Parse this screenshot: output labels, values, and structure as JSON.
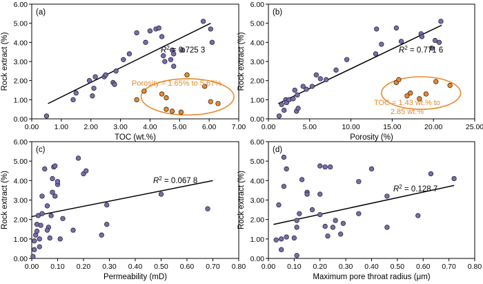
{
  "colors": {
    "purple": "#7a6bb0",
    "orange": "#e8892b",
    "line": "#000000"
  },
  "chart_data": [
    {
      "type": "scatter",
      "panel_label": "(a)",
      "xlabel": "TOC (wt.%)",
      "ylabel": "Rock extract (%)",
      "xlim": [
        0,
        7
      ],
      "ylim": [
        0,
        6
      ],
      "xticks": [
        "0.00",
        "1.00",
        "2.00",
        "3.00",
        "4.00",
        "5.00",
        "6.00",
        "7.00"
      ],
      "yticks": [
        "0.00",
        "1.00",
        "2.00",
        "3.00",
        "4.00",
        "5.00",
        "6.00"
      ],
      "r2_label": "R",
      "r2_sup": "2",
      "r2_value": " = 0.725 3",
      "annotation": [
        "Porosity = 1.65% to 5.67%"
      ],
      "fit": {
        "x": [
          0.55,
          6.05
        ],
        "y": [
          0.8,
          5.0
        ]
      },
      "ellipse": {
        "cx": 5.27,
        "cy": 1.15,
        "rx": 1.57,
        "ry": 0.95
      },
      "series": [
        {
          "color": "purple",
          "points": [
            [
              0.5,
              0.15
            ],
            [
              1.4,
              1.0
            ],
            [
              1.5,
              1.35
            ],
            [
              1.95,
              2.0
            ],
            [
              2.05,
              1.2
            ],
            [
              2.1,
              1.6
            ],
            [
              2.15,
              2.2
            ],
            [
              2.45,
              2.2
            ],
            [
              2.5,
              2.3
            ],
            [
              2.75,
              1.9
            ],
            [
              2.8,
              1.8
            ],
            [
              2.85,
              2.5
            ],
            [
              3.1,
              3.1
            ],
            [
              3.3,
              3.4
            ],
            [
              3.55,
              4.5
            ],
            [
              3.85,
              4.0
            ],
            [
              4.0,
              4.6
            ],
            [
              4.2,
              4.7
            ],
            [
              4.3,
              4.75
            ],
            [
              4.4,
              4.3
            ],
            [
              4.45,
              3.3
            ],
            [
              4.5,
              3.0
            ],
            [
              4.7,
              3.1
            ],
            [
              4.75,
              3.6
            ],
            [
              4.8,
              3.4
            ],
            [
              4.8,
              2.75
            ],
            [
              5.1,
              3.6
            ],
            [
              5.8,
              5.1
            ],
            [
              6.05,
              4.7
            ],
            [
              6.1,
              4.0
            ]
          ]
        },
        {
          "color": "orange",
          "points": [
            [
              3.55,
              1.0
            ],
            [
              3.8,
              1.45
            ],
            [
              4.4,
              1.3
            ],
            [
              4.55,
              1.1
            ],
            [
              4.55,
              0.5
            ],
            [
              4.75,
              0.4
            ],
            [
              5.05,
              0.35
            ],
            [
              5.25,
              2.3
            ],
            [
              5.85,
              1.7
            ],
            [
              6.05,
              0.9
            ],
            [
              6.3,
              0.8
            ]
          ]
        }
      ]
    },
    {
      "type": "scatter",
      "panel_label": "(b)",
      "xlabel": "Porosity (%)",
      "ylabel": "Rock extract (%)",
      "xlim": [
        0,
        25
      ],
      "ylim": [
        0,
        6
      ],
      "xticks": [
        "0.00",
        "5.00",
        "10.00",
        "15.00",
        "20.00",
        "25.00"
      ],
      "yticks": [
        "0.00",
        "1.00",
        "2.00",
        "3.00",
        "4.00",
        "5.00",
        "6.00"
      ],
      "r2_label": "R",
      "r2_sup": "2",
      "r2_value": " = 0.771 6",
      "annotation": [
        "TOC = 1.43 wt.% to",
        "2.85 wt.%"
      ],
      "fit": {
        "x": [
          1.2,
          21.0
        ],
        "y": [
          0.8,
          4.9
        ]
      },
      "ellipse": {
        "cx": 18.5,
        "cy": 1.35,
        "rx": 4.8,
        "ry": 0.85
      },
      "series": [
        {
          "color": "purple",
          "points": [
            [
              1.3,
              0.15
            ],
            [
              1.6,
              0.75
            ],
            [
              1.9,
              0.45
            ],
            [
              2.1,
              1.0
            ],
            [
              2.2,
              0.85
            ],
            [
              2.5,
              1.0
            ],
            [
              3.0,
              1.05
            ],
            [
              3.2,
              1.5
            ],
            [
              3.4,
              0.4
            ],
            [
              3.5,
              1.25
            ],
            [
              3.6,
              0.55
            ],
            [
              4.2,
              1.7
            ],
            [
              4.6,
              1.55
            ],
            [
              5.3,
              1.7
            ],
            [
              5.8,
              2.3
            ],
            [
              6.3,
              2.1
            ],
            [
              7.0,
              2.05
            ],
            [
              8.2,
              2.55
            ],
            [
              9.5,
              3.1
            ],
            [
              13.0,
              3.4
            ],
            [
              13.1,
              4.7
            ],
            [
              13.7,
              3.9
            ],
            [
              15.5,
              4.75
            ],
            [
              16.1,
              4.05
            ],
            [
              18.5,
              4.45
            ],
            [
              18.6,
              4.3
            ],
            [
              19.8,
              3.7
            ],
            [
              20.2,
              4.1
            ],
            [
              20.7,
              4.0
            ],
            [
              20.9,
              5.1
            ]
          ]
        },
        {
          "color": "orange",
          "points": [
            [
              15.5,
              1.9
            ],
            [
              16.8,
              1.2
            ],
            [
              18.3,
              1.05
            ],
            [
              19.1,
              1.3
            ],
            [
              20.3,
              1.95
            ],
            [
              22.0,
              1.75
            ],
            [
              15.8,
              2.05
            ],
            [
              17.2,
              1.35
            ]
          ]
        }
      ]
    },
    {
      "type": "scatter",
      "panel_label": "(c)",
      "xlabel": "Permeability (mD)",
      "ylabel": "Rock extract (%)",
      "xlim": [
        0,
        0.8
      ],
      "ylim": [
        0,
        6
      ],
      "xticks": [
        "0.00",
        "0.10",
        "0.20",
        "0.30",
        "0.40",
        "0.50",
        "0.60",
        "0.70",
        "0.80"
      ],
      "yticks": [
        "0.00",
        "1.00",
        "2.00",
        "3.00",
        "4.00",
        "5.00",
        "6.00"
      ],
      "r2_label": "R",
      "r2_sup": "2",
      "r2_value": " = 0.067 8",
      "annotation": [],
      "fit": {
        "x": [
          0.0,
          0.7
        ],
        "y": [
          2.15,
          4.0
        ]
      },
      "series": [
        {
          "color": "purple",
          "points": [
            [
              0.005,
              0.1
            ],
            [
              0.01,
              0.45
            ],
            [
              0.01,
              0.9
            ],
            [
              0.015,
              1.2
            ],
            [
              0.02,
              1.4
            ],
            [
              0.02,
              1.75
            ],
            [
              0.025,
              2.2
            ],
            [
              0.03,
              1.0
            ],
            [
              0.035,
              1.7
            ],
            [
              0.04,
              2.3
            ],
            [
              0.04,
              3.2
            ],
            [
              0.05,
              4.6
            ],
            [
              0.06,
              2.7
            ],
            [
              0.065,
              1.6
            ],
            [
              0.07,
              1.05
            ],
            [
              0.075,
              2.2
            ],
            [
              0.08,
              4.1
            ],
            [
              0.08,
              3.4
            ],
            [
              0.085,
              4.7
            ],
            [
              0.09,
              3.2
            ],
            [
              0.09,
              4.75
            ],
            [
              0.1,
              3.8
            ],
            [
              0.1,
              3.95
            ],
            [
              0.11,
              1.0
            ],
            [
              0.12,
              2.05
            ],
            [
              0.16,
              1.45
            ],
            [
              0.18,
              5.15
            ],
            [
              0.2,
              4.35
            ],
            [
              0.21,
              4.5
            ],
            [
              0.27,
              1.2
            ],
            [
              0.29,
              2.75
            ],
            [
              0.29,
              1.75
            ],
            [
              0.5,
              3.3
            ],
            [
              0.68,
              2.55
            ],
            [
              0.06,
              1.45
            ],
            [
              0.03,
              0.6
            ]
          ]
        }
      ]
    },
    {
      "type": "scatter",
      "panel_label": "(d)",
      "xlabel": "Maximum pore throat radius (μm)",
      "ylabel": "Rock extract (%)",
      "xlim": [
        0,
        0.8
      ],
      "ylim": [
        0,
        6
      ],
      "xticks": [
        "0.00",
        "0.10",
        "0.20",
        "0.30",
        "0.40",
        "0.50",
        "0.60",
        "0.70",
        "0.80"
      ],
      "yticks": [
        "0.00",
        "1.00",
        "2.00",
        "3.00",
        "4.00",
        "5.00",
        "6.00"
      ],
      "r2_label": "R",
      "r2_sup": "2",
      "r2_value": " = 0.128 7",
      "annotation": [],
      "fit": {
        "x": [
          0.02,
          0.72
        ],
        "y": [
          1.75,
          3.75
        ]
      },
      "series": [
        {
          "color": "purple",
          "points": [
            [
              0.03,
              0.95
            ],
            [
              0.04,
              2.75
            ],
            [
              0.05,
              0.45
            ],
            [
              0.05,
              1.0
            ],
            [
              0.06,
              5.2
            ],
            [
              0.06,
              3.7
            ],
            [
              0.07,
              1.1
            ],
            [
              0.07,
              4.6
            ],
            [
              0.1,
              1.05
            ],
            [
              0.11,
              1.6
            ],
            [
              0.11,
              0.15
            ],
            [
              0.11,
              1.95
            ],
            [
              0.12,
              2.3
            ],
            [
              0.13,
              4.05
            ],
            [
              0.15,
              3.4
            ],
            [
              0.15,
              3.3
            ],
            [
              0.17,
              2.5
            ],
            [
              0.2,
              4.75
            ],
            [
              0.2,
              3.3
            ],
            [
              0.2,
              2.25
            ],
            [
              0.22,
              1.65
            ],
            [
              0.22,
              4.7
            ],
            [
              0.23,
              1.15
            ],
            [
              0.24,
              4.7
            ],
            [
              0.25,
              1.6
            ],
            [
              0.26,
              1.95
            ],
            [
              0.28,
              1.25
            ],
            [
              0.29,
              1.8
            ],
            [
              0.35,
              3.95
            ],
            [
              0.35,
              2.3
            ],
            [
              0.4,
              4.6
            ],
            [
              0.46,
              3.2
            ],
            [
              0.46,
              1.6
            ],
            [
              0.58,
              2.2
            ],
            [
              0.63,
              4.35
            ],
            [
              0.72,
              4.1
            ]
          ]
        }
      ]
    }
  ]
}
